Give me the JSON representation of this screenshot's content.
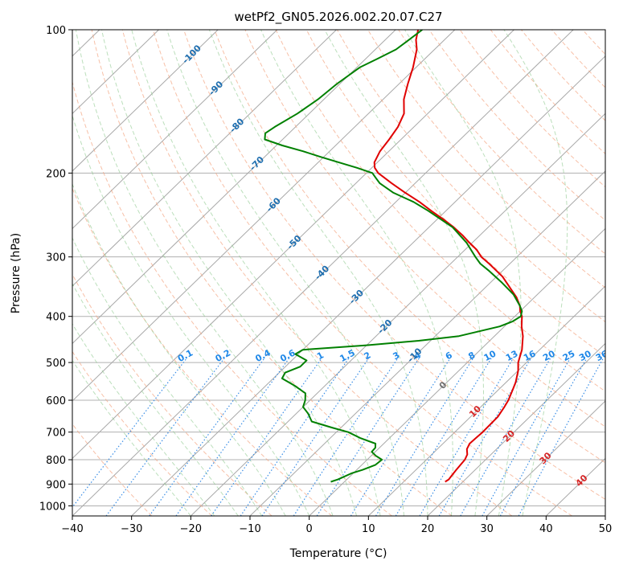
{
  "chart_data": {
    "type": "line",
    "subtype": "skew-T log-P diagram",
    "title": "wetPf2_GN05.2026.002.20.07.C27",
    "xlabel": "Temperature (°C)",
    "ylabel": "Pressure (hPa)",
    "xlim": [
      -40,
      50
    ],
    "ylim_pressure_hPa": [
      1050,
      100
    ],
    "x_ticks": [
      -40,
      -30,
      -20,
      -10,
      0,
      10,
      20,
      30,
      40,
      50
    ],
    "x_tick_labels": [
      "−40",
      "−30",
      "−20",
      "−10",
      "0",
      "10",
      "20",
      "30",
      "40",
      "50"
    ],
    "pressure_ticks": [
      100,
      200,
      300,
      400,
      500,
      600,
      700,
      800,
      900,
      1000
    ],
    "pressure_tick_labels": [
      "100",
      "200",
      "300",
      "400",
      "500",
      "600",
      "700",
      "800",
      "900",
      "1000"
    ],
    "isotherm_labels": {
      "values": [
        -100,
        -90,
        -80,
        -70,
        -60,
        -50,
        -40,
        -30,
        -20,
        -10,
        0,
        10,
        20,
        30,
        40
      ],
      "text": [
        "-100",
        "-90",
        "-80",
        "-70",
        "-60",
        "-50",
        "-40",
        "-30",
        "-20",
        "-10",
        "0",
        "10",
        "20",
        "30",
        "40"
      ]
    },
    "mixing_ratio_labels": {
      "values": [
        0.1,
        0.2,
        0.4,
        0.6,
        1,
        1.5,
        2,
        3,
        4,
        6,
        8,
        10,
        13,
        16,
        20,
        25,
        30,
        36
      ],
      "text": [
        "0.1",
        "0.2",
        "0.4",
        "0.6",
        "1",
        "1.5",
        "2",
        "3",
        "4",
        "6",
        "8",
        "10",
        "13",
        "16",
        "20",
        "25",
        "30",
        "36"
      ]
    },
    "series": [
      {
        "name": "Temperature",
        "color": "#e00000",
        "points": [
          [
            890,
            17.0
          ],
          [
            880,
            17.2
          ],
          [
            860,
            17.0
          ],
          [
            840,
            16.8
          ],
          [
            800,
            16.5
          ],
          [
            780,
            16.0
          ],
          [
            760,
            15.0
          ],
          [
            740,
            14.5
          ],
          [
            720,
            14.6
          ],
          [
            700,
            14.7
          ],
          [
            650,
            14.6
          ],
          [
            620,
            14.0
          ],
          [
            600,
            13.5
          ],
          [
            570,
            12.4
          ],
          [
            550,
            11.6
          ],
          [
            520,
            10.0
          ],
          [
            500,
            8.6
          ],
          [
            470,
            7.0
          ],
          [
            440,
            4.8
          ],
          [
            420,
            2.9
          ],
          [
            400,
            1.2
          ],
          [
            390,
            0.0
          ],
          [
            380,
            -1.0
          ],
          [
            365,
            -3.0
          ],
          [
            350,
            -5.5
          ],
          [
            330,
            -9.0
          ],
          [
            310,
            -13.5
          ],
          [
            300,
            -16.0
          ],
          [
            290,
            -18.0
          ],
          [
            280,
            -20.5
          ],
          [
            270,
            -23.0
          ],
          [
            260,
            -25.8
          ],
          [
            250,
            -29.0
          ],
          [
            240,
            -32.5
          ],
          [
            230,
            -36.0
          ],
          [
            220,
            -40.0
          ],
          [
            210,
            -44.0
          ],
          [
            200,
            -48.0
          ],
          [
            195,
            -49.5
          ],
          [
            190,
            -50.5
          ],
          [
            180,
            -51.5
          ],
          [
            170,
            -52.0
          ],
          [
            160,
            -52.7
          ],
          [
            150,
            -54.0
          ],
          [
            140,
            -56.5
          ],
          [
            130,
            -58.5
          ],
          [
            120,
            -60.5
          ],
          [
            110,
            -63.0
          ],
          [
            105,
            -64.8
          ],
          [
            100,
            -66.2
          ]
        ]
      },
      {
        "name": "Dewpoint",
        "color": "#008000",
        "points": [
          [
            890,
            -2.3
          ],
          [
            880,
            -1.5
          ],
          [
            870,
            -1.0
          ],
          [
            855,
            -0.3
          ],
          [
            840,
            1.0
          ],
          [
            820,
            2.3
          ],
          [
            800,
            2.5
          ],
          [
            785,
            0.8
          ],
          [
            770,
            -0.6
          ],
          [
            755,
            -0.7
          ],
          [
            740,
            -1.4
          ],
          [
            720,
            -5.0
          ],
          [
            700,
            -8.0
          ],
          [
            685,
            -11.5
          ],
          [
            665,
            -16.0
          ],
          [
            640,
            -18.0
          ],
          [
            620,
            -20.0
          ],
          [
            600,
            -20.8
          ],
          [
            580,
            -22.0
          ],
          [
            560,
            -25.0
          ],
          [
            540,
            -28.5
          ],
          [
            525,
            -29.0
          ],
          [
            510,
            -27.5
          ],
          [
            495,
            -27.5
          ],
          [
            480,
            -30.5
          ],
          [
            470,
            -30.0
          ],
          [
            460,
            -20.0
          ],
          [
            450,
            -12.0
          ],
          [
            440,
            -6.0
          ],
          [
            420,
            -0.8
          ],
          [
            410,
            0.5
          ],
          [
            400,
            1.0
          ],
          [
            390,
            0.3
          ],
          [
            380,
            -1.0
          ],
          [
            360,
            -4.0
          ],
          [
            340,
            -8.0
          ],
          [
            320,
            -12.5
          ],
          [
            310,
            -15.0
          ],
          [
            300,
            -17.0
          ],
          [
            280,
            -21.0
          ],
          [
            260,
            -26.0
          ],
          [
            240,
            -33.0
          ],
          [
            230,
            -37.0
          ],
          [
            220,
            -42.0
          ],
          [
            210,
            -46.0
          ],
          [
            205,
            -47.5
          ],
          [
            200,
            -49.0
          ],
          [
            195,
            -52.5
          ],
          [
            190,
            -56.5
          ],
          [
            185,
            -60.5
          ],
          [
            180,
            -64.5
          ],
          [
            175,
            -69.0
          ],
          [
            170,
            -73.0
          ],
          [
            165,
            -74.0
          ],
          [
            160,
            -73.5
          ],
          [
            150,
            -72.0
          ],
          [
            140,
            -71.0
          ],
          [
            130,
            -70.5
          ],
          [
            120,
            -69.5
          ],
          [
            115,
            -68.0
          ],
          [
            110,
            -66.5
          ],
          [
            105,
            -66.0
          ],
          [
            100,
            -65.5
          ]
        ]
      }
    ]
  }
}
